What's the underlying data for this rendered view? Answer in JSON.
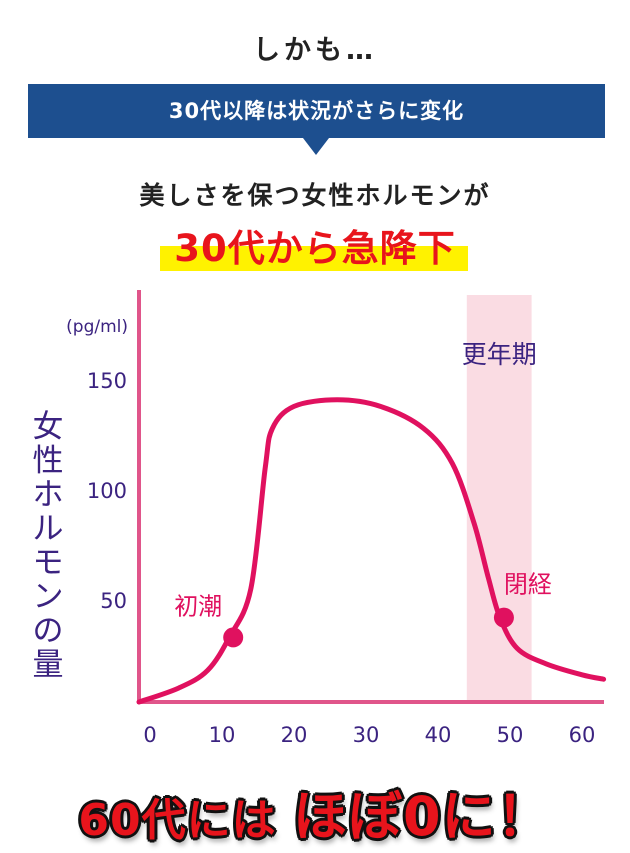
{
  "header": {
    "intro": "しかも…",
    "banner": "30代以降は状況がさらに変化",
    "line1": "美しさを保つ女性ホルモンが",
    "line2": "30代から急降下"
  },
  "footer": {
    "part1": "60代には",
    "part2": "ほぼ0に！"
  },
  "colors": {
    "banner": "#1d4f8f",
    "curve": "#e0115f",
    "axis": "#e0558a",
    "band": "#fadce3",
    "label": "#3b2380",
    "highlight": "#fff200",
    "accent_red": "#e8141c"
  },
  "chart_data": {
    "type": "line",
    "title": "",
    "xlabel": "",
    "ylabel": "女性ホルモンの量",
    "unit": "(pg/ml)",
    "xlim": [
      0,
      63
    ],
    "ylim": [
      0,
      160
    ],
    "x_ticks": [
      "0",
      "10",
      "20",
      "30",
      "40",
      "50",
      "60"
    ],
    "y_ticks": [
      "50",
      "100",
      "150"
    ],
    "series": [
      {
        "name": "女性ホルモンの量",
        "x": [
          0,
          4,
          8,
          11,
          14,
          16,
          17,
          20,
          26,
          32,
          38,
          42,
          45,
          47,
          48.6,
          51,
          55,
          60,
          63
        ],
        "y": [
          3,
          10,
          18,
          33,
          55,
          110,
          128,
          138,
          141,
          138,
          128,
          112,
          85,
          60,
          42,
          28,
          21,
          16,
          14
        ]
      }
    ],
    "markers": [
      {
        "label": "初潮",
        "x": 11,
        "y": 33
      },
      {
        "label": "閉経",
        "x": 48.6,
        "y": 42
      }
    ],
    "band": {
      "label": "更年期",
      "from": 44,
      "to": 53
    },
    "grid": false
  }
}
